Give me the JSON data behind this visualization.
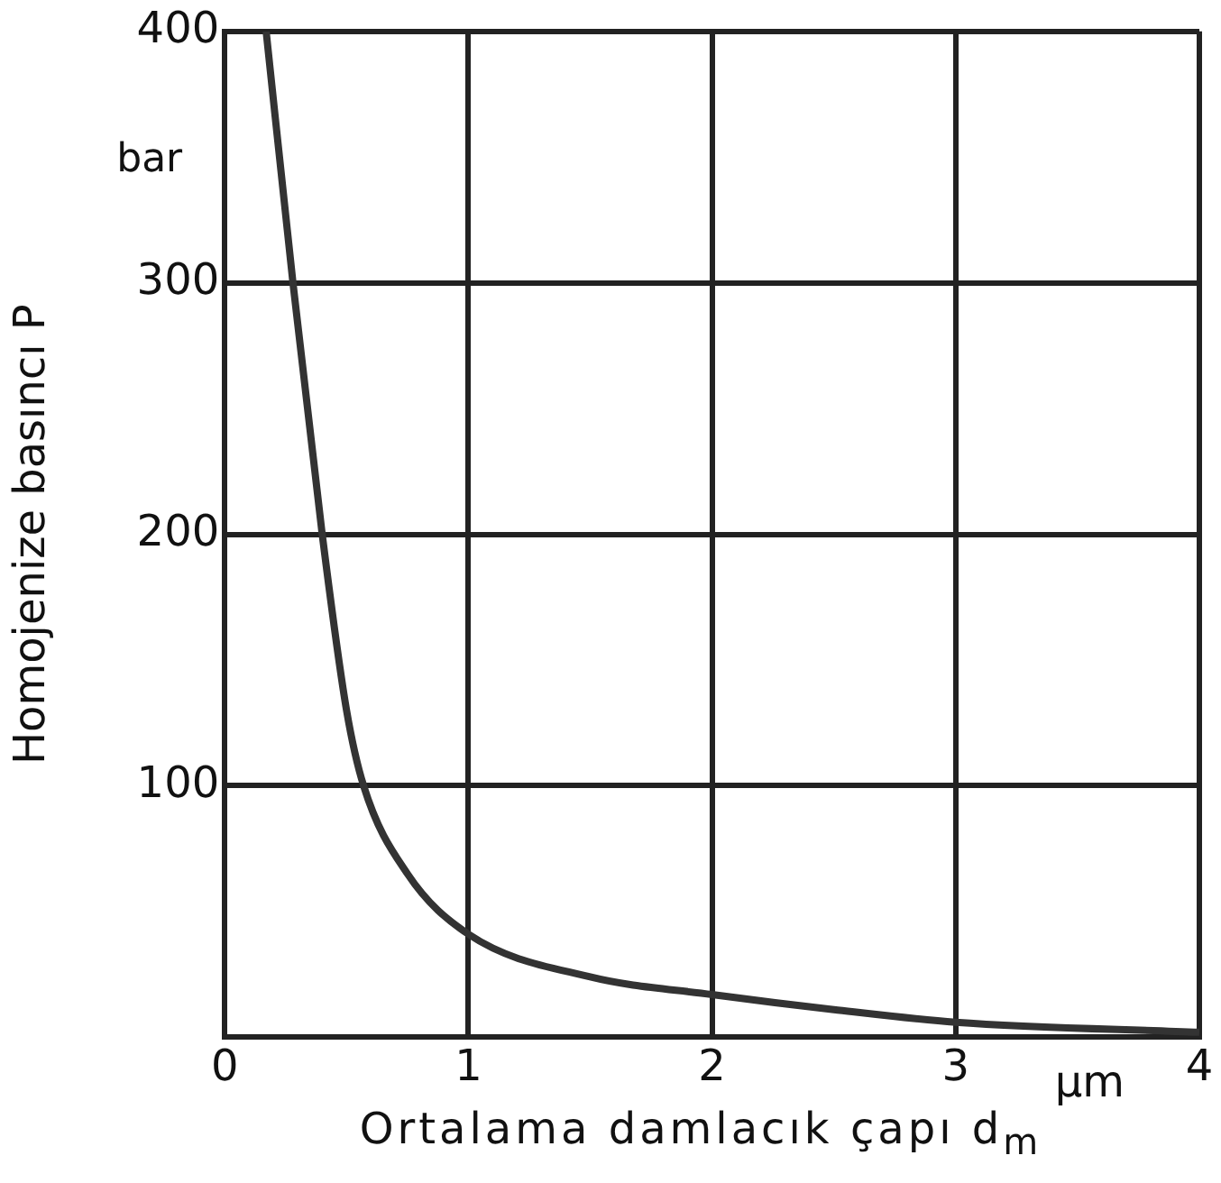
{
  "chart_data": {
    "type": "line",
    "xlabel": "Ortalama damlacık çapı d$_{m}$",
    "ylabel": "Homojenize basıncı P",
    "annotations": [
      "bar",
      "µm"
    ],
    "x": [
      0.17,
      0.28,
      0.4,
      0.5,
      0.57,
      0.75,
      1,
      1.5,
      2,
      2.5,
      3,
      4
    ],
    "series": [
      {
        "color": "#333333",
        "values": [
          400,
          300,
          200,
          130,
          100,
          65,
          41,
          24,
          17,
          11,
          6,
          2
        ]
      }
    ],
    "xlim": [
      0,
      4
    ],
    "xticks": [
      0,
      1,
      2,
      3,
      4
    ],
    "ylim": [
      0,
      400
    ],
    "yticks": [
      {
        "value": 0,
        "label": null
      },
      100,
      200,
      300,
      400
    ],
    "grid": true,
    "legend": false,
    "marker": "none",
    "line_style": "solid"
  }
}
